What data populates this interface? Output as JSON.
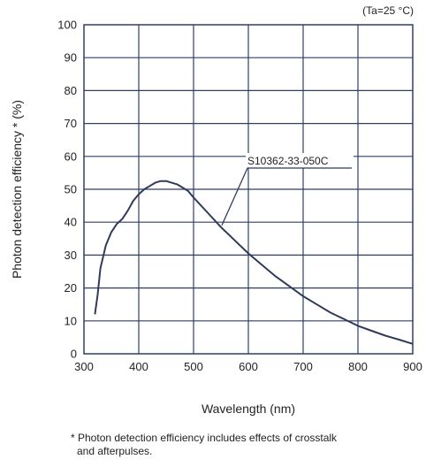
{
  "chart_data": {
    "type": "line",
    "condition": "(Ta=25 °C)",
    "xlabel": "Wavelength (nm)",
    "ylabel": "Photon detection efficiency * (%)",
    "xlim": [
      300,
      900
    ],
    "ylim": [
      0,
      100
    ],
    "x_ticks": [
      300,
      400,
      500,
      600,
      700,
      800,
      900
    ],
    "y_ticks": [
      0,
      10,
      20,
      30,
      40,
      50,
      60,
      70,
      80,
      90,
      100
    ],
    "grid": true,
    "series": [
      {
        "name": "S10362-33-050C",
        "color": "#2e3b59",
        "x": [
          320,
          325,
          330,
          340,
          350,
          360,
          370,
          380,
          390,
          400,
          410,
          420,
          430,
          440,
          450,
          460,
          470,
          480,
          490,
          500,
          525,
          550,
          575,
          600,
          625,
          650,
          675,
          700,
          725,
          750,
          775,
          800,
          825,
          850,
          875,
          900
        ],
        "y": [
          12,
          18,
          26,
          33,
          37,
          39.5,
          41,
          43.5,
          46.5,
          48.5,
          50,
          51,
          52,
          52.5,
          52.5,
          52,
          51.5,
          50.5,
          49.5,
          47.5,
          43,
          38.5,
          34.5,
          30.5,
          27,
          23.5,
          20.5,
          17.5,
          15,
          12.5,
          10.5,
          8.5,
          7,
          5.5,
          4.3,
          3
        ]
      }
    ]
  },
  "footnote": {
    "line1": "* Photon detection efficiency includes effects of crosstalk",
    "line2": "and afterpulses."
  }
}
